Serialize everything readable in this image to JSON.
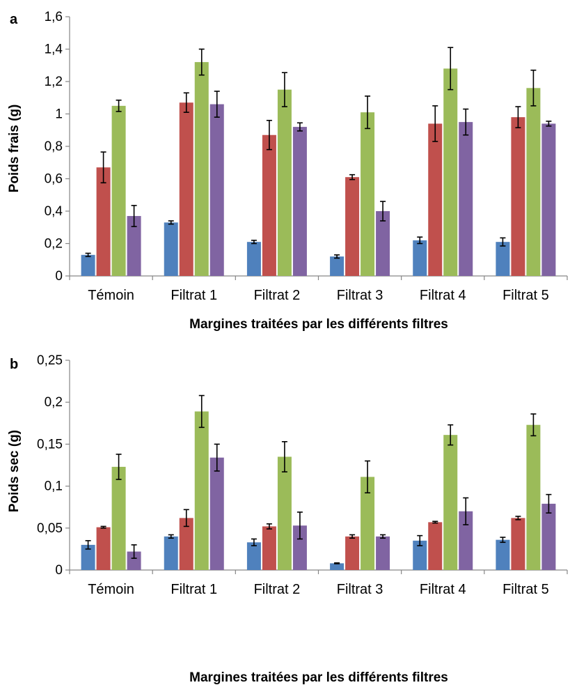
{
  "chart_data": [
    {
      "panel_label": "a",
      "type": "bar",
      "categories": [
        "Témoin",
        "Filtrat 1",
        "Filtrat 2",
        "Filtrat 3",
        "Filtrat 4",
        "Filtrat 5"
      ],
      "series": [
        {
          "color": "#4f81bd",
          "values": [
            0.13,
            0.33,
            0.21,
            0.12,
            0.22,
            0.21
          ],
          "errors": [
            0.01,
            0.01,
            0.01,
            0.01,
            0.02,
            0.025
          ]
        },
        {
          "color": "#c0504d",
          "values": [
            0.67,
            1.07,
            0.87,
            0.61,
            0.94,
            0.98
          ],
          "errors": [
            0.095,
            0.06,
            0.09,
            0.015,
            0.11,
            0.065
          ]
        },
        {
          "color": "#9bbb59",
          "values": [
            1.05,
            1.32,
            1.15,
            1.01,
            1.28,
            1.16
          ],
          "errors": [
            0.035,
            0.08,
            0.105,
            0.1,
            0.13,
            0.11
          ]
        },
        {
          "color": "#8064a2",
          "values": [
            0.37,
            1.06,
            0.92,
            0.4,
            0.95,
            0.94
          ],
          "errors": [
            0.065,
            0.08,
            0.025,
            0.06,
            0.08,
            0.015
          ]
        }
      ],
      "xlabel": "Margines traitées par les différents filtres",
      "ylabel": "Poids frais (g)",
      "ylim": [
        0,
        1.6
      ],
      "yticks": [
        "0",
        "0,2",
        "0,4",
        "0,6",
        "0,8",
        "1",
        "1,2",
        "1,4",
        "1,6"
      ],
      "grid": false,
      "legend": "none"
    },
    {
      "panel_label": "b",
      "type": "bar",
      "categories": [
        "Témoin",
        "Filtrat 1",
        "Filtrat 2",
        "Filtrat 3",
        "Filtrat 4",
        "Filtrat 5"
      ],
      "series": [
        {
          "color": "#4f81bd",
          "values": [
            0.03,
            0.04,
            0.033,
            0.008,
            0.035,
            0.036
          ],
          "errors": [
            0.005,
            0.002,
            0.004,
            0.0005,
            0.006,
            0.003
          ]
        },
        {
          "color": "#c0504d",
          "values": [
            0.051,
            0.062,
            0.052,
            0.04,
            0.057,
            0.062
          ],
          "errors": [
            0.001,
            0.01,
            0.003,
            0.002,
            0.001,
            0.002
          ]
        },
        {
          "color": "#9bbb59",
          "values": [
            0.123,
            0.189,
            0.135,
            0.111,
            0.161,
            0.173
          ],
          "errors": [
            0.015,
            0.019,
            0.018,
            0.019,
            0.012,
            0.013
          ]
        },
        {
          "color": "#8064a2",
          "values": [
            0.022,
            0.134,
            0.053,
            0.04,
            0.07,
            0.079
          ],
          "errors": [
            0.008,
            0.016,
            0.016,
            0.002,
            0.016,
            0.011
          ]
        }
      ],
      "xlabel": "Margines traitées par les différents filtres",
      "ylabel": "Poids sec (g)",
      "ylim": [
        0,
        0.25
      ],
      "yticks": [
        "0",
        "0,05",
        "0,1",
        "0,15",
        "0,2",
        "0,25"
      ],
      "grid": false,
      "legend": "none"
    }
  ]
}
